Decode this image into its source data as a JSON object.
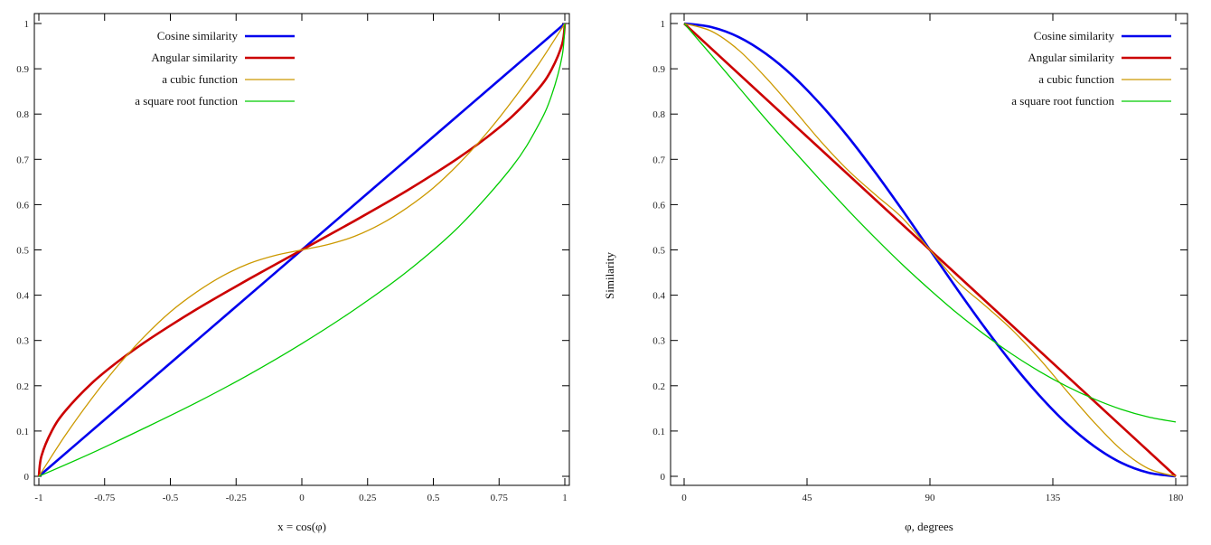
{
  "chart_data": [
    {
      "type": "line",
      "title": "",
      "xlabel": "x = cos(φ)",
      "ylabel": "",
      "xlim": [
        -1,
        1
      ],
      "ylim": [
        0,
        1
      ],
      "x_ticks": [
        "-1",
        "-0.75",
        "-0.5",
        "-0.25",
        "0",
        "0.25",
        "0.5",
        "0.75",
        "1"
      ],
      "x_tick_values": [
        -1,
        -0.75,
        -0.5,
        -0.25,
        0,
        0.25,
        0.5,
        0.75,
        1
      ],
      "y_ticks": [
        "0",
        "0.1",
        "0.2",
        "0.3",
        "0.4",
        "0.5",
        "0.6",
        "0.7",
        "0.8",
        "0.9",
        "1"
      ],
      "y_tick_values": [
        0,
        0.1,
        0.2,
        0.3,
        0.4,
        0.5,
        0.6,
        0.7,
        0.8,
        0.9,
        1
      ],
      "grid": false,
      "legend_position": "top-left",
      "series": [
        {
          "name": "Cosine similarity",
          "color": "#0000ee",
          "x": [
            -1,
            -0.75,
            -0.5,
            -0.25,
            0,
            0.25,
            0.5,
            0.75,
            1
          ],
          "y": [
            0,
            0.125,
            0.25,
            0.375,
            0.5,
            0.625,
            0.75,
            0.875,
            1
          ]
        },
        {
          "name": "Angular similarity",
          "color": "#cc0000",
          "x": [
            -1,
            -0.99,
            -0.95,
            -0.9,
            -0.8,
            -0.7,
            -0.6,
            -0.5,
            -0.4,
            -0.3,
            -0.2,
            -0.1,
            0,
            0.1,
            0.2,
            0.3,
            0.4,
            0.5,
            0.6,
            0.7,
            0.8,
            0.9,
            0.95,
            0.99,
            1
          ],
          "y": [
            0,
            0.045,
            0.101,
            0.144,
            0.205,
            0.253,
            0.295,
            0.333,
            0.369,
            0.403,
            0.436,
            0.468,
            0.5,
            0.532,
            0.564,
            0.597,
            0.631,
            0.667,
            0.705,
            0.747,
            0.795,
            0.856,
            0.899,
            0.955,
            1
          ]
        },
        {
          "name": "a cubic function",
          "color": "#cc9900",
          "x": [
            -1,
            -0.9,
            -0.8,
            -0.7,
            -0.6,
            -0.5,
            -0.4,
            -0.3,
            -0.2,
            -0.1,
            0,
            0.1,
            0.2,
            0.3,
            0.4,
            0.5,
            0.6,
            0.7,
            0.8,
            0.9,
            1
          ],
          "y": [
            0,
            0.09,
            0.171,
            0.244,
            0.308,
            0.363,
            0.407,
            0.443,
            0.47,
            0.488,
            0.5,
            0.512,
            0.53,
            0.557,
            0.593,
            0.637,
            0.692,
            0.756,
            0.829,
            0.91,
            1
          ]
        },
        {
          "name": "a square root function",
          "color": "#00cc00",
          "x": [
            -1,
            -0.8,
            -0.6,
            -0.4,
            -0.2,
            0,
            0.2,
            0.4,
            0.6,
            0.8,
            0.9,
            0.95,
            0.99,
            1
          ],
          "y": [
            0,
            0.051,
            0.106,
            0.163,
            0.225,
            0.293,
            0.368,
            0.452,
            0.553,
            0.684,
            0.776,
            0.842,
            0.929,
            1
          ]
        }
      ]
    },
    {
      "type": "line",
      "title": "",
      "xlabel": "φ, degrees",
      "ylabel": "Similarity",
      "xlim": [
        0,
        180
      ],
      "ylim": [
        0,
        1
      ],
      "x_ticks": [
        "0",
        "45",
        "90",
        "135",
        "180"
      ],
      "x_tick_values": [
        0,
        45,
        90,
        135,
        180
      ],
      "y_ticks": [
        "0",
        "0.1",
        "0.2",
        "0.3",
        "0.4",
        "0.5",
        "0.6",
        "0.7",
        "0.8",
        "0.9",
        "1"
      ],
      "y_tick_values": [
        0,
        0.1,
        0.2,
        0.3,
        0.4,
        0.5,
        0.6,
        0.7,
        0.8,
        0.9,
        1
      ],
      "grid": false,
      "legend_position": "top-right",
      "series": [
        {
          "name": "Cosine similarity",
          "color": "#0000ee",
          "x": [
            0,
            10,
            20,
            30,
            40,
            50,
            60,
            70,
            80,
            90,
            100,
            110,
            120,
            130,
            140,
            150,
            160,
            170,
            180
          ],
          "y": [
            1,
            0.992,
            0.97,
            0.933,
            0.883,
            0.821,
            0.75,
            0.671,
            0.587,
            0.5,
            0.413,
            0.329,
            0.25,
            0.179,
            0.117,
            0.067,
            0.03,
            0.008,
            0
          ]
        },
        {
          "name": "Angular similarity",
          "color": "#cc0000",
          "x": [
            0,
            180
          ],
          "y": [
            1,
            0
          ]
        },
        {
          "name": "a cubic function",
          "color": "#cc9900",
          "x": [
            0,
            10,
            20,
            30,
            40,
            50,
            60,
            70,
            80,
            90,
            100,
            110,
            120,
            130,
            140,
            150,
            160,
            170,
            180
          ],
          "y": [
            1,
            0.983,
            0.941,
            0.88,
            0.811,
            0.74,
            0.676,
            0.622,
            0.57,
            0.5,
            0.43,
            0.378,
            0.324,
            0.26,
            0.189,
            0.12,
            0.059,
            0.017,
            0
          ]
        },
        {
          "name": "a square root function",
          "color": "#00cc00",
          "x": [
            0,
            10,
            20,
            30,
            40,
            50,
            60,
            70,
            80,
            90,
            100,
            110,
            120,
            130,
            140,
            150,
            160,
            170,
            180
          ],
          "y": [
            1,
            0.93,
            0.859,
            0.788,
            0.72,
            0.653,
            0.588,
            0.526,
            0.467,
            0.412,
            0.36,
            0.313,
            0.27,
            0.232,
            0.199,
            0.171,
            0.148,
            0.131,
            0.12
          ]
        }
      ]
    }
  ]
}
